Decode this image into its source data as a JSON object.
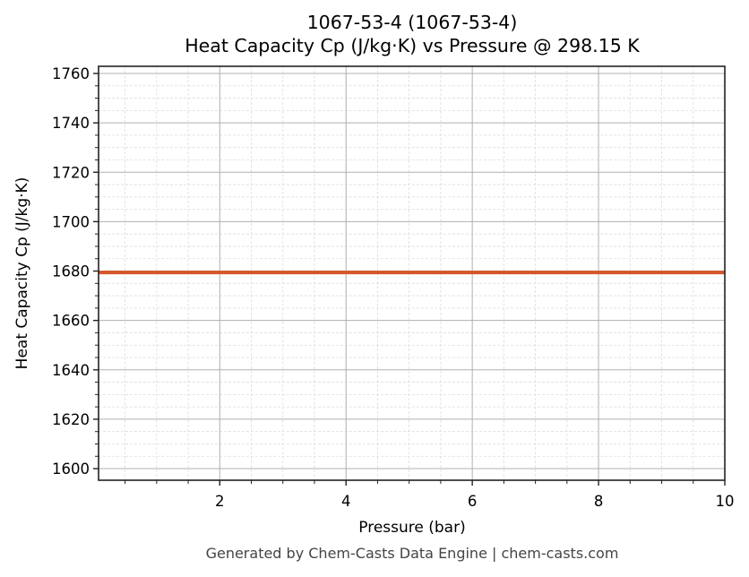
{
  "chart_data": {
    "type": "line",
    "title": "1067-53-4 (1067-53-4)",
    "subtitle": "Heat Capacity Cp (J/kg·K) vs Pressure @ 298.15 K",
    "xlabel": "Pressure (bar)",
    "ylabel": "Heat Capacity Cp (J/kg·K)",
    "xlim": [
      0.08,
      10
    ],
    "ylim": [
      1595.3,
      1762.9
    ],
    "x_ticks": [
      2,
      4,
      6,
      8,
      10
    ],
    "y_ticks": [
      1600,
      1620,
      1640,
      1660,
      1680,
      1700,
      1720,
      1740,
      1760
    ],
    "grid": true,
    "legend": null,
    "series": [
      {
        "name": "Cp",
        "color": "#d4572a",
        "x": [
          0.08,
          10
        ],
        "values": [
          1679.4,
          1679.4
        ]
      }
    ]
  },
  "footer": "Generated by Chem-Casts Data Engine | chem-casts.com"
}
